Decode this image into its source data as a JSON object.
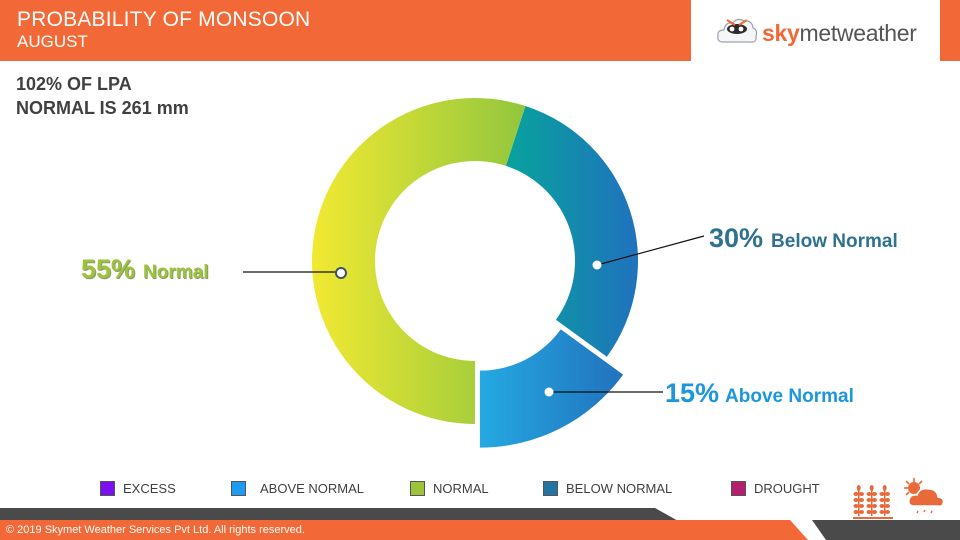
{
  "header": {
    "title": "PROBABILITY OF MONSOON",
    "subtitle": "AUGUST",
    "logo": {
      "brand_bold": "sky",
      "brand_rest": "metweather",
      "icon": "cloud-mascot-icon"
    }
  },
  "summary": {
    "line1": "102% OF LPA",
    "line2": "NORMAL IS 261 mm"
  },
  "callouts": {
    "normal": {
      "pct": "55%",
      "name": "Normal",
      "color": "#9dc33b"
    },
    "below": {
      "pct": "30%",
      "name": "Below Normal",
      "color": "#2e7290"
    },
    "above": {
      "pct": "15%",
      "name": "Above Normal",
      "color": "#1d96e0"
    }
  },
  "legend": [
    {
      "label": "EXCESS",
      "color": "#7a0ff0"
    },
    {
      "label": "ABOVE NORMAL",
      "color": "#1c9bf0"
    },
    {
      "label": "NORMAL",
      "color": "#9dc33b"
    },
    {
      "label": "BELOW NORMAL",
      "color": "#2473a0"
    },
    {
      "label": "DROUGHT",
      "color": "#b41e6e"
    }
  ],
  "footer": {
    "copyright": "© 2019 Skymet Weather Services Pvt Ltd. All rights reserved.",
    "icons": [
      "wheat-crop-icon",
      "sun-cloud-rain-icon"
    ]
  },
  "chart_data": {
    "type": "pie",
    "subtype": "donut",
    "title": "PROBABILITY OF MONSOON - AUGUST",
    "categories": [
      "Normal",
      "Below Normal",
      "Above Normal",
      "Excess",
      "Drought"
    ],
    "values": [
      55,
      30,
      15,
      0,
      0
    ],
    "unit": "%",
    "annotations": [
      "102% OF LPA",
      "NORMAL IS 261 mm"
    ],
    "legend_position": "bottom",
    "exploded": [
      "Above Normal"
    ]
  }
}
